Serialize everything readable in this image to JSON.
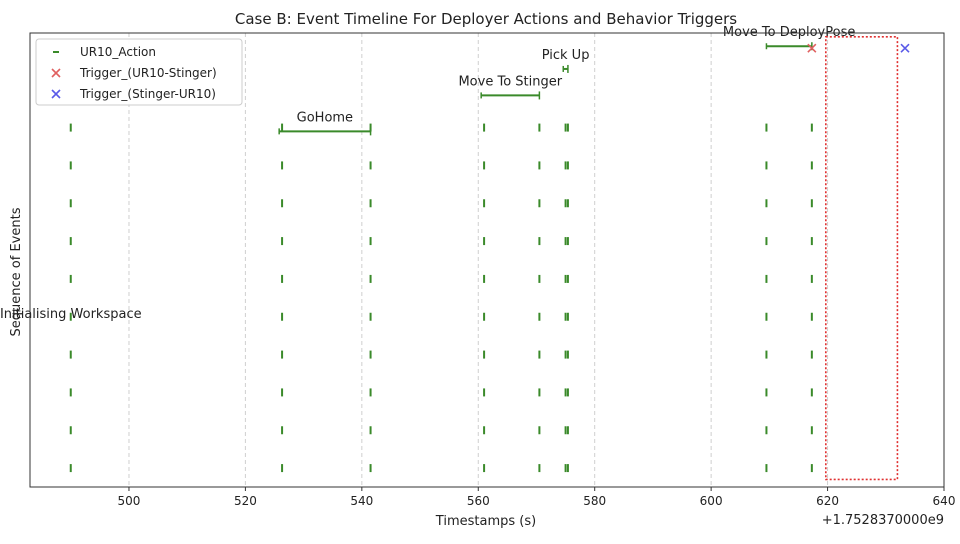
{
  "chart_data": {
    "type": "scatter",
    "title": "Case B: Event Timeline For Deployer Actions and Behavior Triggers",
    "xlabel": "Timestamps (s)",
    "ylabel": "Sequence of Events",
    "x_offset_label": "+1.7528370000e9",
    "xlim": [
      483,
      640
    ],
    "ylim": [
      0,
      12
    ],
    "x_ticks": [
      500,
      520,
      540,
      560,
      580,
      600,
      620,
      640
    ],
    "grid": "x-dashed",
    "legend": {
      "placement": "top-left",
      "entries": [
        {
          "name": "UR10_Action",
          "marker": "dash",
          "color": "#3a8a2a"
        },
        {
          "name": "Trigger_(UR10-Stinger)",
          "marker": "x",
          "color": "#e06060"
        },
        {
          "name": "Trigger_(Stinger-UR10)",
          "marker": "x",
          "color": "#5a5ae8"
        }
      ]
    },
    "action_columns": [
      490,
      526.3,
      541.5,
      561,
      570.5,
      575,
      575.4,
      609.5,
      617.3
    ],
    "action_levels": [
      0.5,
      1.5,
      2.5,
      3.5,
      4.5,
      5.5,
      6.5,
      7.5,
      8.5,
      9.5
    ],
    "action_segments": [
      {
        "label": "Initialising Workspace",
        "x_start": 490,
        "x_end": 490,
        "y": 4.6
      },
      {
        "label": "GoHome",
        "x_start": 525.8,
        "x_end": 541.5,
        "y": 9.4
      },
      {
        "label": "Move To Stinger",
        "x_start": 560.5,
        "x_end": 570.5,
        "y": 10.35
      },
      {
        "label": "Pick Up",
        "x_start": 574.6,
        "x_end": 575.4,
        "y": 11.05
      },
      {
        "label": "Move To DeployPose",
        "x_start": 609.5,
        "x_end": 617.3,
        "y": 11.65
      }
    ],
    "triggers": [
      {
        "series": "Trigger_(UR10-Stinger)",
        "x": 617.3,
        "y": 11.6
      },
      {
        "series": "Trigger_(Stinger-UR10)",
        "x": 633.3,
        "y": 11.6
      }
    ],
    "highlight": {
      "x_start": 619.7,
      "x_end": 632.0,
      "y_start": 0.2,
      "y_end": 11.9,
      "color": "#e03030"
    },
    "colors": {
      "action": "#3a8a2a",
      "trigger_ur10_stinger": "#e06060",
      "trigger_stinger_ur10": "#5a5ae8",
      "grid": "#cfcfcf"
    }
  }
}
